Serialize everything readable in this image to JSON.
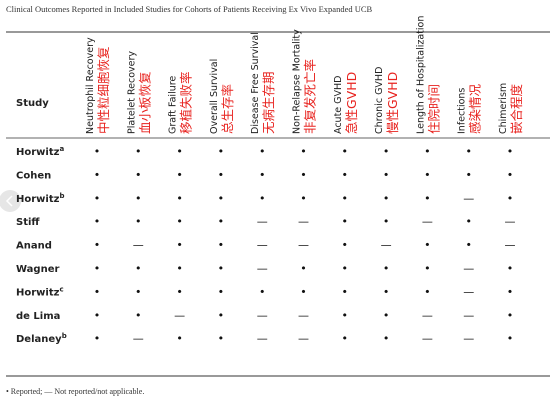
{
  "caption": "Clinical Outcomes Reported in Included Studies for Cohorts of Patients Receiving Ex Vivo Expanded UCB",
  "table": {
    "study_header": "Study",
    "columns": [
      {
        "label": "Neutrophil Recovery",
        "note": "中性粒细胞恢复"
      },
      {
        "label": "Platelet Recovery",
        "note": "血小板恢复"
      },
      {
        "label": "Graft Failure",
        "note": "移植失败率"
      },
      {
        "label": "Overall Survival",
        "note": "总生存率"
      },
      {
        "label": "Disease Free Survival",
        "note": "无病生存期"
      },
      {
        "label": "Non-Relapse Mortality",
        "note": "非复发死亡率"
      },
      {
        "label": "Acute GVHD",
        "note": "急性GVHD"
      },
      {
        "label": "Chronic GVHD",
        "note": "慢性GVHD"
      },
      {
        "label": "Length of Hospitalization",
        "note": "住院时间"
      },
      {
        "label": "Infections",
        "note": "感染情况"
      },
      {
        "label": "Chimerism",
        "note": "嵌合程度"
      }
    ],
    "rows": [
      {
        "study": "Horwitz",
        "sup": "a",
        "cells": [
          "•",
          "•",
          "•",
          "•",
          "•",
          "•",
          "•",
          "•",
          "•",
          "•",
          "•"
        ]
      },
      {
        "study": "Cohen",
        "cells": [
          "•",
          "•",
          "•",
          "•",
          "•",
          "•",
          "•",
          "•",
          "•",
          "•",
          "•"
        ]
      },
      {
        "study": "Horwitz",
        "sup": "b",
        "cells": [
          "•",
          "•",
          "•",
          "•",
          "•",
          "•",
          "•",
          "•",
          "•",
          "—",
          "•"
        ]
      },
      {
        "study": "Stiff",
        "cells": [
          "•",
          "•",
          "•",
          "•",
          "—",
          "—",
          "•",
          "•",
          "—",
          "•",
          "—"
        ]
      },
      {
        "study": "Anand",
        "cells": [
          "•",
          "—",
          "•",
          "•",
          "—",
          "—",
          "•",
          "—",
          "•",
          "•",
          "—"
        ]
      },
      {
        "study": "Wagner",
        "cells": [
          "•",
          "•",
          "•",
          "•",
          "—",
          "•",
          "•",
          "•",
          "•",
          "—",
          "•"
        ]
      },
      {
        "study": "Horwitz",
        "sup": "c",
        "cells": [
          "•",
          "•",
          "•",
          "•",
          "•",
          "•",
          "•",
          "•",
          "•",
          "—",
          "•"
        ]
      },
      {
        "study": "de Lima",
        "cells": [
          "•",
          "•",
          "—",
          "•",
          "—",
          "—",
          "•",
          "•",
          "—",
          "—",
          "•"
        ]
      },
      {
        "study": "Delaney",
        "sup": "b",
        "cells": [
          "•",
          "—",
          "•",
          "•",
          "—",
          "—",
          "•",
          "•",
          "—",
          "—",
          "•"
        ]
      }
    ]
  },
  "footnote": "• Reported; — Not reported/not applicable."
}
